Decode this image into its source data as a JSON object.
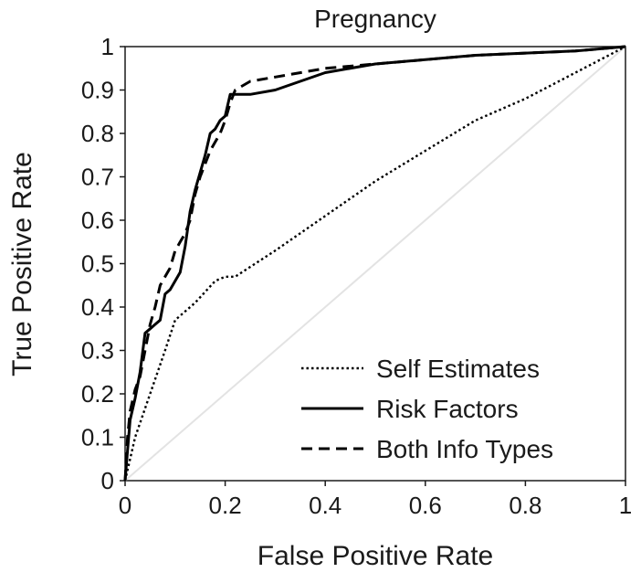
{
  "chart_data": {
    "type": "line",
    "title": "Pregnancy",
    "xlabel": "False Positive Rate",
    "ylabel": "True Positive Rate",
    "xlim": [
      0,
      1
    ],
    "ylim": [
      0,
      1
    ],
    "xticks": [
      "0",
      "0.2",
      "0.4",
      "0.6",
      "0.8",
      "1"
    ],
    "yticks": [
      "0",
      "0.1",
      "0.2",
      "0.3",
      "0.4",
      "0.5",
      "0.6",
      "0.7",
      "0.8",
      "0.9",
      "1"
    ],
    "grid": false,
    "legend_position": "bottom-right",
    "reference_line": {
      "x": [
        0,
        1
      ],
      "y": [
        0,
        1
      ],
      "color": "#e3e3e3"
    },
    "series": [
      {
        "name": "Self Estimates",
        "style": "dotted",
        "color": "#000000",
        "x": [
          0,
          0.02,
          0.05,
          0.08,
          0.1,
          0.14,
          0.18,
          0.2,
          0.22,
          0.3,
          0.4,
          0.5,
          0.6,
          0.7,
          0.8,
          0.9,
          1.0
        ],
        "y": [
          0,
          0.1,
          0.2,
          0.3,
          0.37,
          0.41,
          0.46,
          0.47,
          0.47,
          0.53,
          0.61,
          0.69,
          0.76,
          0.83,
          0.88,
          0.94,
          1.0
        ]
      },
      {
        "name": "Risk Factors",
        "style": "solid",
        "color": "#000000",
        "x": [
          0,
          0.005,
          0.01,
          0.02,
          0.03,
          0.04,
          0.05,
          0.06,
          0.07,
          0.08,
          0.09,
          0.1,
          0.11,
          0.12,
          0.13,
          0.14,
          0.15,
          0.16,
          0.17,
          0.18,
          0.19,
          0.2,
          0.21,
          0.25,
          0.3,
          0.4,
          0.5,
          0.6,
          0.7,
          0.8,
          0.9,
          1.0
        ],
        "y": [
          0,
          0.07,
          0.14,
          0.19,
          0.25,
          0.34,
          0.35,
          0.36,
          0.37,
          0.43,
          0.44,
          0.46,
          0.48,
          0.54,
          0.62,
          0.67,
          0.71,
          0.75,
          0.8,
          0.81,
          0.83,
          0.84,
          0.89,
          0.89,
          0.9,
          0.94,
          0.96,
          0.97,
          0.98,
          0.985,
          0.99,
          1.0
        ]
      },
      {
        "name": "Both Info Types",
        "style": "dashed",
        "color": "#000000",
        "x": [
          0,
          0.005,
          0.01,
          0.02,
          0.03,
          0.04,
          0.05,
          0.06,
          0.07,
          0.08,
          0.09,
          0.1,
          0.11,
          0.12,
          0.13,
          0.14,
          0.15,
          0.16,
          0.17,
          0.18,
          0.19,
          0.2,
          0.21,
          0.22,
          0.25,
          0.3,
          0.4,
          0.5,
          0.6,
          0.7,
          0.8,
          0.9,
          1.0
        ],
        "y": [
          0,
          0.1,
          0.16,
          0.21,
          0.24,
          0.3,
          0.36,
          0.4,
          0.45,
          0.47,
          0.49,
          0.53,
          0.55,
          0.57,
          0.6,
          0.66,
          0.7,
          0.73,
          0.76,
          0.78,
          0.8,
          0.83,
          0.87,
          0.9,
          0.92,
          0.93,
          0.95,
          0.96,
          0.97,
          0.98,
          0.985,
          0.99,
          1.0
        ]
      }
    ]
  }
}
